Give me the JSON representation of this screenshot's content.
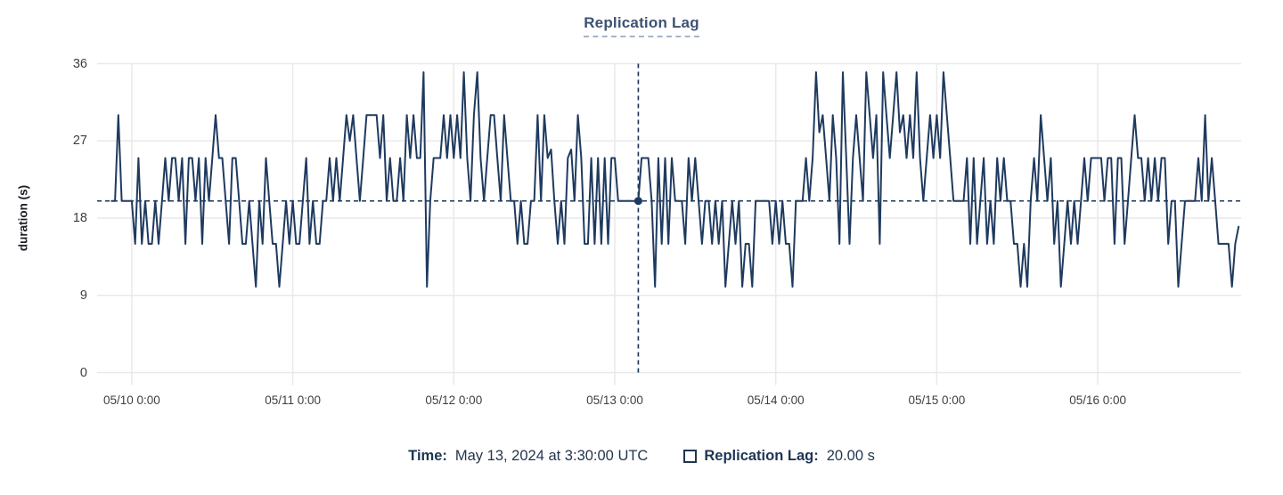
{
  "title": "Replication Lag",
  "chart_data": {
    "type": "line",
    "title": "Replication Lag",
    "xlabel": "",
    "ylabel": "duration (s)",
    "ylim": [
      0,
      36
    ],
    "y_ticks": [
      0,
      9,
      18,
      27,
      36
    ],
    "x_ticks": [
      "05/10 0:00",
      "05/11 0:00",
      "05/12 0:00",
      "05/13 0:00",
      "05/14 0:00",
      "05/15 0:00",
      "05/16 0:00"
    ],
    "grid": true,
    "legend_position": "bottom",
    "series": [
      {
        "name": "Replication Lag",
        "unit": "s",
        "interval_minutes": 30,
        "start": "05/09 21:00",
        "end": "05/16 21:00",
        "values": [
          20,
          20,
          30,
          20,
          20,
          20,
          20,
          15,
          25,
          15,
          20,
          15,
          15,
          20,
          15,
          20,
          25,
          20,
          25,
          25,
          20,
          25,
          15,
          25,
          25,
          20,
          25,
          15,
          25,
          20,
          25,
          30,
          25,
          25,
          20,
          15,
          25,
          25,
          20,
          15,
          15,
          20,
          15,
          10,
          20,
          15,
          25,
          20,
          15,
          15,
          10,
          15,
          20,
          15,
          20,
          15,
          15,
          20,
          25,
          15,
          20,
          15,
          15,
          20,
          20,
          25,
          20,
          25,
          20,
          25,
          30,
          27,
          30,
          25,
          20,
          25,
          30,
          30,
          30,
          30,
          25,
          30,
          20,
          25,
          20,
          20,
          25,
          20,
          30,
          25,
          30,
          25,
          25,
          35,
          10,
          20,
          25,
          25,
          25,
          30,
          25,
          30,
          25,
          30,
          25,
          35,
          25,
          20,
          30,
          35,
          25,
          20,
          25,
          30,
          30,
          25,
          20,
          30,
          25,
          20,
          20,
          15,
          20,
          15,
          15,
          20,
          20,
          30,
          20,
          30,
          25,
          26,
          20,
          15,
          20,
          15,
          25,
          26,
          20,
          30,
          25,
          15,
          15,
          25,
          15,
          25,
          15,
          25,
          15,
          25,
          25,
          20,
          20,
          20,
          20,
          20,
          20,
          20,
          25,
          25,
          25,
          20,
          10,
          25,
          15,
          25,
          15,
          25,
          20,
          20,
          20,
          15,
          25,
          20,
          25,
          20,
          15,
          20,
          20,
          15,
          20,
          15,
          20,
          10,
          15,
          20,
          15,
          20,
          10,
          15,
          15,
          10,
          20,
          20,
          20,
          20,
          20,
          15,
          20,
          15,
          20,
          15,
          15,
          10,
          20,
          20,
          20,
          25,
          20,
          25,
          35,
          28,
          30,
          25,
          20,
          30,
          25,
          15,
          35,
          25,
          15,
          25,
          30,
          25,
          20,
          35,
          30,
          25,
          30,
          15,
          35,
          30,
          25,
          30,
          35,
          28,
          30,
          25,
          30,
          25,
          35,
          25,
          20,
          25,
          30,
          25,
          30,
          25,
          35,
          30,
          25,
          20,
          20,
          20,
          20,
          25,
          15,
          25,
          15,
          20,
          25,
          15,
          20,
          15,
          25,
          20,
          25,
          20,
          20,
          15,
          15,
          10,
          15,
          10,
          20,
          25,
          20,
          30,
          25,
          20,
          25,
          15,
          20,
          10,
          15,
          20,
          15,
          20,
          15,
          20,
          25,
          20,
          25,
          25,
          25,
          25,
          20,
          25,
          25,
          15,
          25,
          25,
          15,
          20,
          25,
          30,
          25,
          25,
          20,
          25,
          20,
          25,
          20,
          25,
          25,
          15,
          20,
          20,
          10,
          15,
          20,
          20,
          20,
          20,
          25,
          20,
          30,
          20,
          25,
          20,
          15,
          15,
          15,
          15,
          10,
          15,
          17
        ]
      }
    ],
    "hover": {
      "index": 157,
      "value": 20,
      "time_label": "Time:",
      "time_value": "May 13, 2024 at 3:30:00 UTC",
      "series_label": "Replication Lag:",
      "series_value": "20.00 s"
    },
    "colors": {
      "line": "#1f3a5f",
      "crosshair": "#1f3a5f",
      "grid": "#e8e9ec",
      "tick_text": "#3c3f46",
      "title_text": "#3d5272",
      "legend_text": "#1d3553"
    }
  }
}
